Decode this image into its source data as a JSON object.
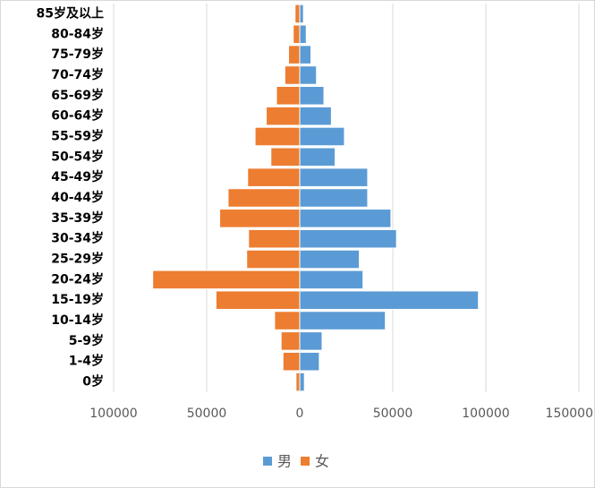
{
  "chart_data": {
    "type": "bar",
    "orientation": "horizontal",
    "stacked": true,
    "categories": [
      "85岁及以上",
      "80-84岁",
      "75-79岁",
      "70-74岁",
      "65-69岁",
      "60-64岁",
      "55-59岁",
      "50-54岁",
      "45-49岁",
      "40-44岁",
      "35-39岁",
      "30-34岁",
      "25-29岁",
      "20-24岁",
      "15-19岁",
      "10-14岁",
      "5-9岁",
      "1-4岁",
      "0岁"
    ],
    "series": [
      {
        "name": "男",
        "color": "#5b9bd5",
        "values": [
          2000,
          3500,
          6000,
          9000,
          13000,
          17000,
          24000,
          19000,
          36500,
          36500,
          49000,
          52000,
          32000,
          34000,
          96000,
          46000,
          12000,
          10500,
          2500
        ]
      },
      {
        "name": "女",
        "color": "#ed7d31",
        "values": [
          -2500,
          -3500,
          -6000,
          -8000,
          -12500,
          -18000,
          -24000,
          -15500,
          -28000,
          -38500,
          -43000,
          -27500,
          -28500,
          -79000,
          -45000,
          -13500,
          -10000,
          -9000,
          -2000
        ]
      }
    ],
    "xlim": [
      -100000,
      150000
    ],
    "xticks": [
      {
        "value": -100000,
        "label": "100000"
      },
      {
        "value": -50000,
        "label": "50000"
      },
      0,
      50000,
      100000,
      150000
    ],
    "grid": true,
    "legend": "bottom"
  }
}
